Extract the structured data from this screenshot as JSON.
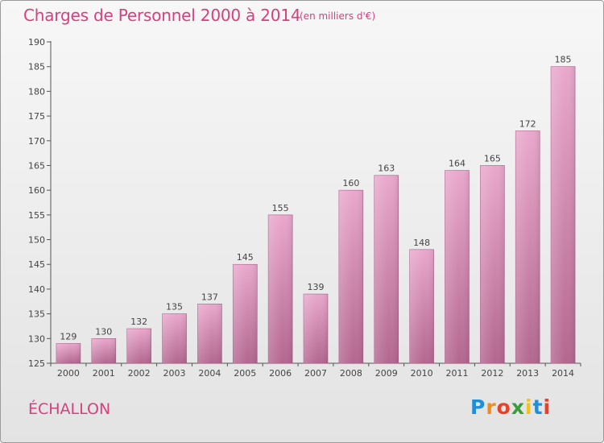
{
  "title": "Charges de Personnel 2000 à 2014",
  "subtitle": "(en milliers d'€)",
  "commune": "ÉCHALLON",
  "logo": {
    "letters": [
      "P",
      "r",
      "o",
      "x",
      "i",
      "t",
      "i"
    ],
    "colors": [
      "#1f8fd6",
      "#f28c1b",
      "#e8402a",
      "#3a9c3a",
      "#f2c21b",
      "#1f8fd6",
      "#e8402a"
    ]
  },
  "colors": {
    "bar": "#d98cb5",
    "bar_dark": "#b86a95",
    "accent": "#d4417d"
  },
  "chart_data": {
    "type": "bar",
    "categories": [
      "2000",
      "2001",
      "2002",
      "2003",
      "2004",
      "2005",
      "2006",
      "2007",
      "2008",
      "2009",
      "2010",
      "2011",
      "2012",
      "2013",
      "2014"
    ],
    "values": [
      129,
      130,
      132,
      135,
      137,
      145,
      155,
      139,
      160,
      163,
      148,
      164,
      165,
      172,
      185
    ],
    "ylim": [
      125,
      190
    ],
    "yticks": [
      125,
      130,
      135,
      140,
      145,
      150,
      155,
      160,
      165,
      170,
      175,
      180,
      185,
      190
    ],
    "grid": false,
    "data_labels": true
  }
}
